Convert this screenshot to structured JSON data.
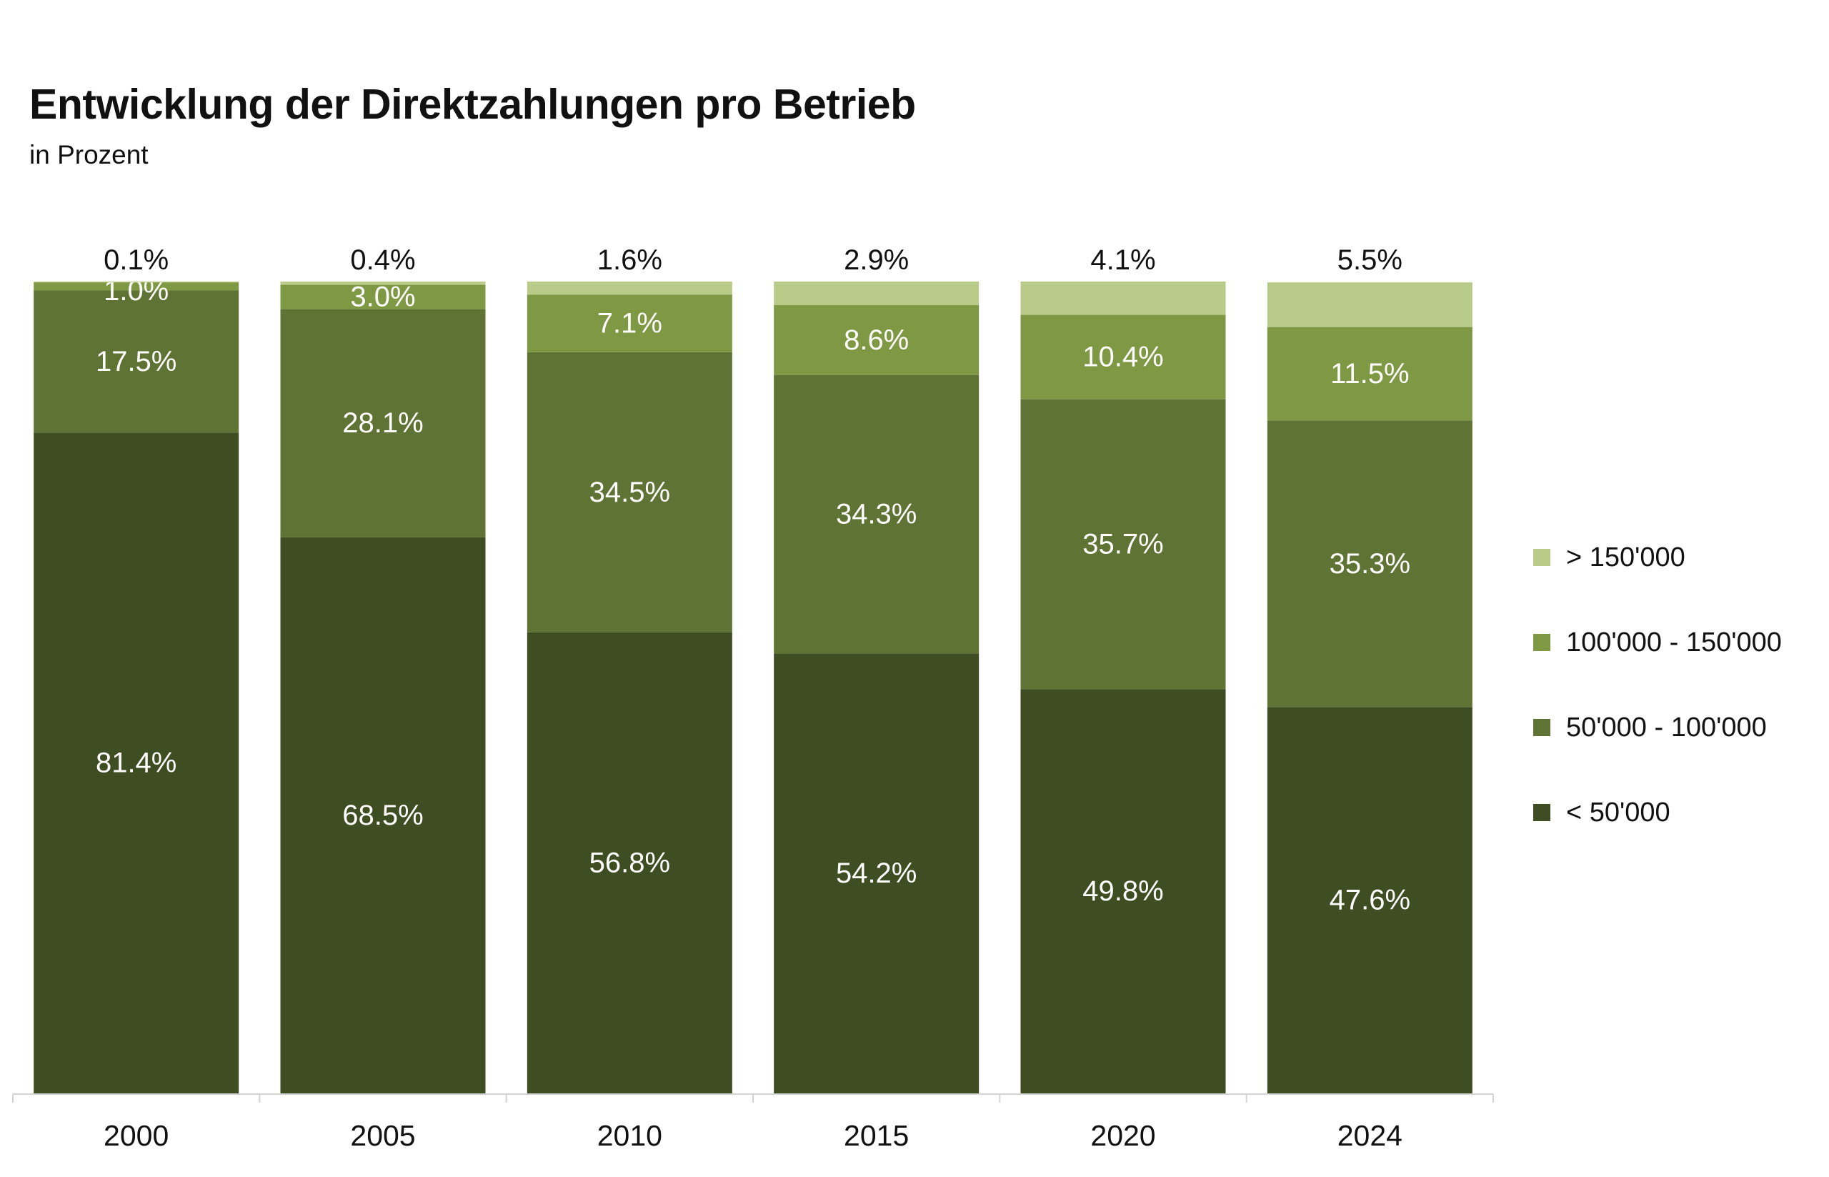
{
  "header": {
    "title": "Entwicklung der Direktzahlungen pro Betrieb",
    "subtitle": "in Prozent"
  },
  "colors": {
    "lt50k": "#3f4d22",
    "50k_100k": "#5f7334",
    "100k_150k": "#7f9843",
    "gt150k": "#b8cb88",
    "axis": "#d4d4d4",
    "text_dark": "#111111",
    "text_light": "#ffffff"
  },
  "chart_data": {
    "type": "bar",
    "stacked": true,
    "title": "Entwicklung der Direktzahlungen pro Betrieb",
    "subtitle": "in Prozent",
    "categories": [
      "2000",
      "2005",
      "2010",
      "2015",
      "2020",
      "2024"
    ],
    "series": [
      {
        "name": "< 50'000",
        "color": "#3f4d22",
        "values": [
          81.4,
          68.5,
          56.8,
          54.2,
          49.8,
          47.6
        ]
      },
      {
        "name": "50'000 - 100'000",
        "color": "#5f7334",
        "values": [
          17.5,
          28.1,
          34.5,
          34.3,
          35.7,
          35.3
        ]
      },
      {
        "name": "100'000 - 150'000",
        "color": "#7f9843",
        "values": [
          1.0,
          3.0,
          7.1,
          8.6,
          10.4,
          11.5
        ]
      },
      {
        "name": "> 150'000",
        "color": "#b8cb88",
        "values": [
          0.1,
          0.4,
          1.6,
          2.9,
          4.1,
          5.5
        ]
      }
    ],
    "data_labels": true,
    "value_suffix": "%",
    "ylim": [
      0,
      100
    ],
    "grid": false,
    "legend": "right"
  }
}
